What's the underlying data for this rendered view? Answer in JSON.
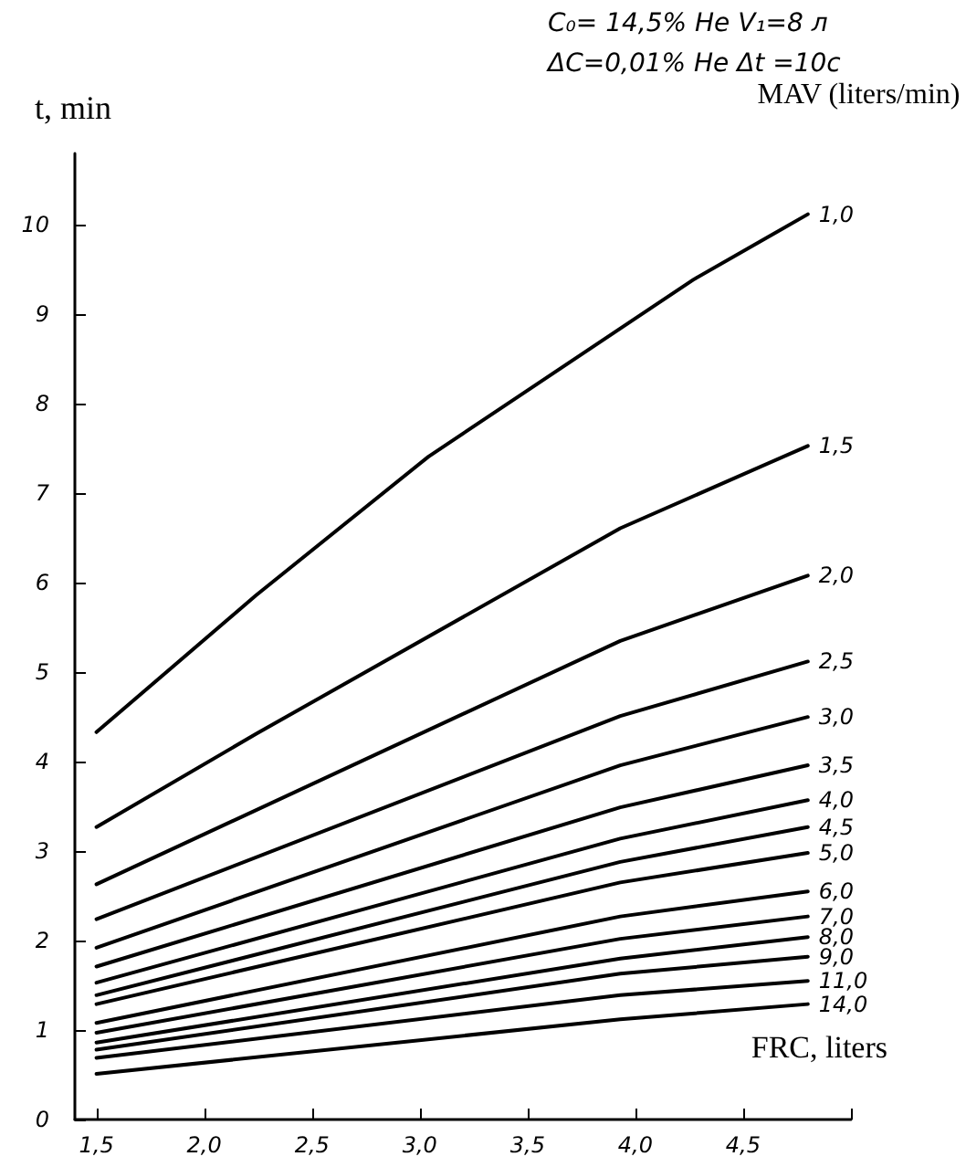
{
  "chart_data": {
    "type": "line",
    "xlabel": "FRC, liters",
    "ylabel": "t, min",
    "legend_title": "MAV (liters/min)",
    "annotations": [
      "C₀= 14,5% He V₁=8 л",
      "ΔC=0,01% He Δt =10с"
    ],
    "xlim": [
      1.4,
      5.0
    ],
    "xticks": [
      {
        "value": 1.5,
        "label": "1,5"
      },
      {
        "value": 2.0,
        "label": "2,0"
      },
      {
        "value": 2.5,
        "label": "2,5"
      },
      {
        "value": 3.0,
        "label": "3,0"
      },
      {
        "value": 3.5,
        "label": "3,5"
      },
      {
        "value": 4.0,
        "label": "4,0"
      },
      {
        "value": 4.5,
        "label": "4,5"
      },
      {
        "value": 5.0,
        "label": null
      }
    ],
    "ylim": [
      0,
      10.8
    ],
    "yticks": [
      0,
      1,
      2,
      3,
      4,
      5,
      6,
      7,
      8,
      9,
      10
    ],
    "grid": false,
    "legend": false,
    "marker": "none",
    "line_style": "solid",
    "series": [
      {
        "name": "1,0",
        "color": "#000000",
        "x": [
          1.5,
          2.24,
          3.04,
          4.27,
          4.8
        ],
        "values": [
          4.33,
          5.86,
          7.41,
          9.39,
          10.12
        ]
      },
      {
        "name": "1,5",
        "color": "#000000",
        "x": [
          1.5,
          2.24,
          3.93,
          4.8
        ],
        "values": [
          3.27,
          4.31,
          6.61,
          7.53
        ]
      },
      {
        "name": "2,0",
        "color": "#000000",
        "x": [
          1.5,
          3.93,
          4.8
        ],
        "values": [
          2.63,
          5.35,
          6.08
        ]
      },
      {
        "name": "2,5",
        "color": "#000000",
        "x": [
          1.5,
          3.93,
          4.8
        ],
        "values": [
          2.24,
          4.51,
          5.12
        ]
      },
      {
        "name": "3,0",
        "color": "#000000",
        "x": [
          1.5,
          3.93,
          4.8
        ],
        "values": [
          1.92,
          3.96,
          4.5
        ]
      },
      {
        "name": "3,5",
        "color": "#000000",
        "x": [
          1.5,
          3.93,
          4.8
        ],
        "values": [
          1.71,
          3.49,
          3.96
        ]
      },
      {
        "name": "4,0",
        "color": "#000000",
        "x": [
          1.5,
          3.93,
          4.8
        ],
        "values": [
          1.53,
          3.14,
          3.57
        ]
      },
      {
        "name": "4,5",
        "color": "#000000",
        "x": [
          1.5,
          3.93,
          4.8
        ],
        "values": [
          1.39,
          2.88,
          3.27
        ]
      },
      {
        "name": "5,0",
        "color": "#000000",
        "x": [
          1.5,
          3.93,
          4.8
        ],
        "values": [
          1.29,
          2.65,
          2.98
        ]
      },
      {
        "name": "6,0",
        "color": "#000000",
        "x": [
          1.5,
          3.93,
          4.8
        ],
        "values": [
          1.08,
          2.27,
          2.55
        ]
      },
      {
        "name": "7,0",
        "color": "#000000",
        "x": [
          1.5,
          3.93,
          4.8
        ],
        "values": [
          0.97,
          2.02,
          2.27
        ]
      },
      {
        "name": "8,0",
        "color": "#000000",
        "x": [
          1.5,
          3.93,
          4.8
        ],
        "values": [
          0.86,
          1.8,
          2.04
        ]
      },
      {
        "name": "9,0",
        "color": "#000000",
        "x": [
          1.5,
          3.93,
          4.8
        ],
        "values": [
          0.78,
          1.63,
          1.82
        ]
      },
      {
        "name": "11,0",
        "color": "#000000",
        "x": [
          1.5,
          3.93,
          4.8
        ],
        "values": [
          0.69,
          1.39,
          1.55
        ]
      },
      {
        "name": "14,0",
        "color": "#000000",
        "x": [
          1.5,
          3.93,
          4.8
        ],
        "values": [
          0.51,
          1.12,
          1.29
        ]
      }
    ]
  }
}
